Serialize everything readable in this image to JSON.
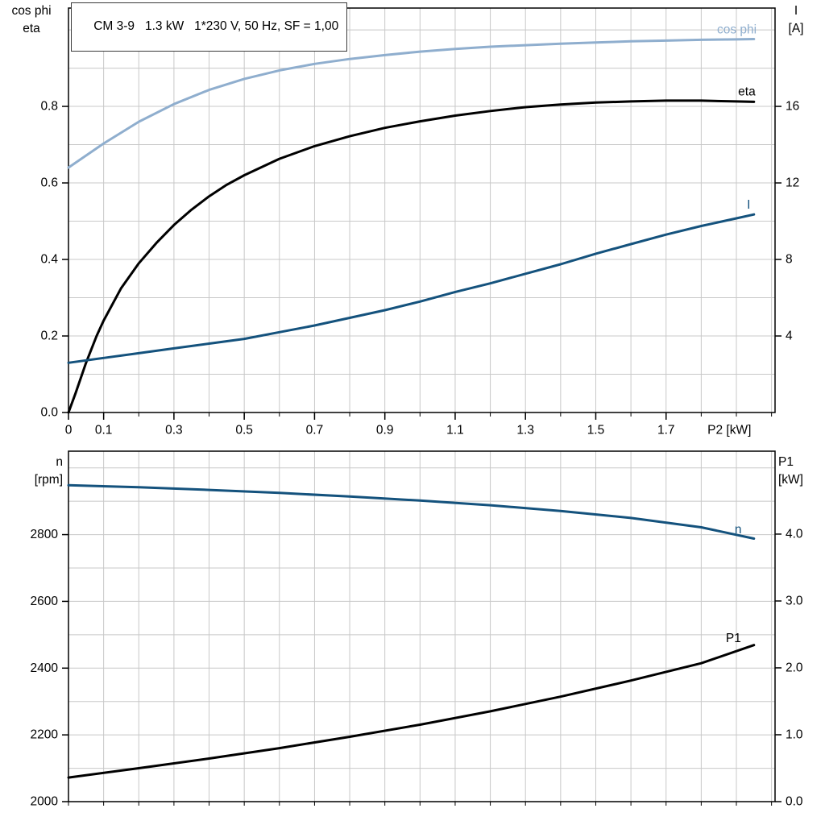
{
  "colors": {
    "black": "#000000",
    "dark_blue": "#14527D",
    "light_blue": "#8FAECE",
    "grid": "#C8C8C8"
  },
  "chart_data": [
    {
      "id": "motor-electrical",
      "type": "line",
      "title": "CM 3-9   1.3 kW   1*230 V, 50 Hz, SF = 1,00",
      "x_range": [
        0,
        2.01
      ],
      "grid_x_step": 0.1,
      "x_ticks": [
        0,
        0.1,
        0.3,
        0.5,
        0.7,
        0.9,
        1.1,
        1.3,
        1.5,
        1.7
      ],
      "x_tick_labels": [
        "0",
        "0.1",
        "0.3",
        "0.5",
        "0.7",
        "0.9",
        "1.1",
        "1.3",
        "1.5",
        "1.7"
      ],
      "x_axis_label": "P2 [kW]",
      "x_axis_label_x": 1.88,
      "left_axis": {
        "title_lines": [
          "cos phi",
          "eta"
        ],
        "range": [
          0,
          1.057
        ],
        "grid_step": 0.1,
        "ticks": [
          0,
          0.2,
          0.4,
          0.6,
          0.8
        ],
        "tick_labels": [
          "0.0",
          "0.2",
          "0.4",
          "0.6",
          "0.8"
        ]
      },
      "right_axis": {
        "title_lines": [
          "I",
          "[A]"
        ],
        "range": [
          0,
          21.14
        ],
        "ticks": [
          4,
          8,
          12,
          16
        ],
        "tick_labels": [
          "4",
          "8",
          "12",
          "16"
        ]
      },
      "series": [
        {
          "name": "cos phi",
          "axis": "left",
          "color": "#8FAECE",
          "label": {
            "x": 1.845,
            "y": 1.0,
            "anchor": "start"
          },
          "points": [
            [
              0,
              0.64
            ],
            [
              0.1,
              0.703
            ],
            [
              0.2,
              0.76
            ],
            [
              0.3,
              0.806
            ],
            [
              0.4,
              0.843
            ],
            [
              0.5,
              0.872
            ],
            [
              0.6,
              0.894
            ],
            [
              0.7,
              0.911
            ],
            [
              0.8,
              0.924
            ],
            [
              0.9,
              0.934
            ],
            [
              1,
              0.943
            ],
            [
              1.1,
              0.95
            ],
            [
              1.2,
              0.956
            ],
            [
              1.3,
              0.96
            ],
            [
              1.4,
              0.964
            ],
            [
              1.5,
              0.967
            ],
            [
              1.6,
              0.97
            ],
            [
              1.7,
              0.972
            ],
            [
              1.8,
              0.974
            ],
            [
              1.9,
              0.975
            ],
            [
              1.95,
              0.976
            ]
          ]
        },
        {
          "name": "eta",
          "axis": "left",
          "color": "#000000",
          "label": {
            "x": 1.905,
            "y": 0.838,
            "anchor": "start"
          },
          "points": [
            [
              0,
              0
            ],
            [
              0.02,
              0.05
            ],
            [
              0.05,
              0.13
            ],
            [
              0.08,
              0.2
            ],
            [
              0.1,
              0.24
            ],
            [
              0.15,
              0.325
            ],
            [
              0.2,
              0.39
            ],
            [
              0.25,
              0.443
            ],
            [
              0.3,
              0.49
            ],
            [
              0.35,
              0.53
            ],
            [
              0.4,
              0.565
            ],
            [
              0.45,
              0.595
            ],
            [
              0.5,
              0.62
            ],
            [
              0.6,
              0.663
            ],
            [
              0.7,
              0.696
            ],
            [
              0.8,
              0.722
            ],
            [
              0.9,
              0.744
            ],
            [
              1,
              0.761
            ],
            [
              1.1,
              0.776
            ],
            [
              1.2,
              0.788
            ],
            [
              1.3,
              0.798
            ],
            [
              1.4,
              0.805
            ],
            [
              1.5,
              0.81
            ],
            [
              1.6,
              0.813
            ],
            [
              1.7,
              0.815
            ],
            [
              1.8,
              0.815
            ],
            [
              1.9,
              0.813
            ],
            [
              1.95,
              0.812
            ]
          ]
        },
        {
          "name": "I",
          "axis": "right",
          "color": "#14527D",
          "label": {
            "x": 1.93,
            "y": 10.85,
            "anchor": "start"
          },
          "points": [
            [
              0,
              2.6
            ],
            [
              0.1,
              2.85
            ],
            [
              0.2,
              3.1
            ],
            [
              0.3,
              3.35
            ],
            [
              0.4,
              3.6
            ],
            [
              0.5,
              3.85
            ],
            [
              0.6,
              4.2
            ],
            [
              0.7,
              4.55
            ],
            [
              0.8,
              4.95
            ],
            [
              0.9,
              5.35
            ],
            [
              1,
              5.8
            ],
            [
              1.1,
              6.3
            ],
            [
              1.2,
              6.75
            ],
            [
              1.3,
              7.25
            ],
            [
              1.4,
              7.75
            ],
            [
              1.5,
              8.3
            ],
            [
              1.6,
              8.8
            ],
            [
              1.7,
              9.3
            ],
            [
              1.8,
              9.75
            ],
            [
              1.9,
              10.15
            ],
            [
              1.95,
              10.35
            ]
          ]
        }
      ]
    },
    {
      "id": "motor-mechanical",
      "type": "line",
      "title": "",
      "x_range": [
        0,
        2.01
      ],
      "grid_x_step": 0.1,
      "x_ticks": [],
      "x_tick_labels": [],
      "x_axis_label": "",
      "x_axis_label_x": 0,
      "left_axis": {
        "title_lines": [
          "n",
          "[rpm]"
        ],
        "range": [
          2000,
          3050
        ],
        "grid_step": 100,
        "ticks": [
          2000,
          2200,
          2400,
          2600,
          2800
        ],
        "tick_labels": [
          "2000",
          "2200",
          "2400",
          "2600",
          "2800"
        ]
      },
      "right_axis": {
        "title_lines": [
          "P1",
          "[kW]"
        ],
        "range": [
          0,
          5.24
        ],
        "ticks": [
          0,
          1,
          2,
          3,
          4
        ],
        "tick_labels": [
          "0.0",
          "1.0",
          "2.0",
          "3.0",
          "4.0"
        ]
      },
      "series": [
        {
          "name": "n",
          "axis": "left",
          "color": "#14527D",
          "label": {
            "x": 1.895,
            "y": 2815,
            "anchor": "start"
          },
          "points": [
            [
              0,
              2948
            ],
            [
              0.2,
              2942
            ],
            [
              0.4,
              2934
            ],
            [
              0.6,
              2925
            ],
            [
              0.8,
              2914
            ],
            [
              1,
              2902
            ],
            [
              1.2,
              2888
            ],
            [
              1.4,
              2871
            ],
            [
              1.6,
              2850
            ],
            [
              1.8,
              2822
            ],
            [
              1.95,
              2788
            ]
          ]
        },
        {
          "name": "P1",
          "axis": "right",
          "color": "#000000",
          "label": {
            "x": 1.87,
            "y": 2.44,
            "anchor": "start"
          },
          "points": [
            [
              0,
              0.36
            ],
            [
              0.2,
              0.5
            ],
            [
              0.4,
              0.645
            ],
            [
              0.6,
              0.8
            ],
            [
              0.8,
              0.97
            ],
            [
              1,
              1.15
            ],
            [
              1.2,
              1.35
            ],
            [
              1.4,
              1.57
            ],
            [
              1.6,
              1.81
            ],
            [
              1.8,
              2.07
            ],
            [
              1.95,
              2.34
            ]
          ]
        }
      ]
    }
  ]
}
